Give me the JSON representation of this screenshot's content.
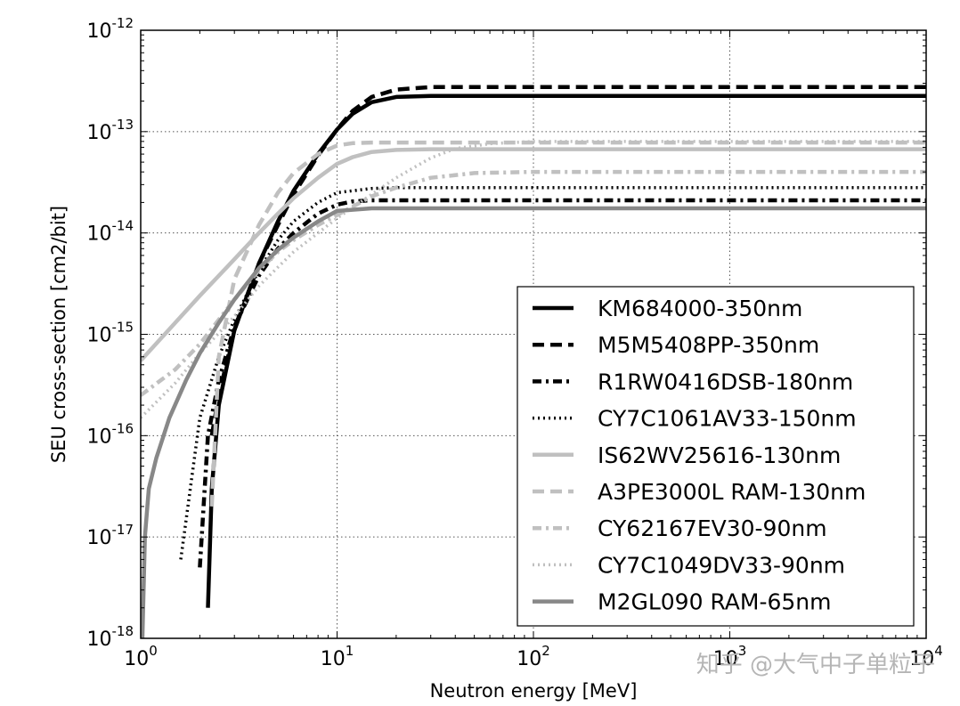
{
  "chart_data": {
    "type": "line",
    "xlabel": "Neutron energy [MeV]",
    "ylabel": "SEU cross-section [cm2/bit]",
    "x_scale": "log",
    "y_scale": "log",
    "xlim": [
      1,
      10000
    ],
    "ylim": [
      1e-18,
      1e-12
    ],
    "grid": true,
    "legend_position": "lower-right",
    "x_ticks": [
      {
        "base": "10",
        "exp": "0",
        "value": 1
      },
      {
        "base": "10",
        "exp": "1",
        "value": 10
      },
      {
        "base": "10",
        "exp": "2",
        "value": 100
      },
      {
        "base": "10",
        "exp": "3",
        "value": 1000
      },
      {
        "base": "10",
        "exp": "4",
        "value": 10000
      }
    ],
    "y_ticks": [
      {
        "base": "10",
        "exp": "-12",
        "value": 1e-12
      },
      {
        "base": "10",
        "exp": "-13",
        "value": 1e-13
      },
      {
        "base": "10",
        "exp": "-14",
        "value": 1e-14
      },
      {
        "base": "10",
        "exp": "-15",
        "value": 1e-15
      },
      {
        "base": "10",
        "exp": "-16",
        "value": 1e-16
      },
      {
        "base": "10",
        "exp": "-17",
        "value": 1e-17
      },
      {
        "base": "10",
        "exp": "-18",
        "value": 1e-18
      }
    ],
    "series": [
      {
        "name": "KM684000-350nm",
        "color": "#000000",
        "style": "solid",
        "x": [
          2.2,
          2.3,
          2.5,
          3,
          4,
          5,
          6,
          8,
          10,
          12,
          15,
          20,
          30,
          100,
          1000,
          10000
        ],
        "y": [
          2e-18,
          3e-17,
          2e-16,
          1.1e-15,
          5e-15,
          1.3e-14,
          2.6e-14,
          6e-14,
          1.05e-13,
          1.5e-13,
          1.95e-13,
          2.2e-13,
          2.25e-13,
          2.25e-13,
          2.25e-13,
          2.25e-13
        ]
      },
      {
        "name": "M5M5408PP-350nm",
        "color": "#000000",
        "style": "dashed",
        "x": [
          2.3,
          2.5,
          3,
          4,
          5,
          6,
          8,
          10,
          12,
          15,
          20,
          30,
          100,
          1000,
          10000
        ],
        "y": [
          1e-16,
          2.5e-16,
          1.1e-15,
          5e-15,
          1.2e-14,
          2.4e-14,
          5.8e-14,
          1.05e-13,
          1.6e-13,
          2.2e-13,
          2.6e-13,
          2.75e-13,
          2.75e-13,
          2.75e-13,
          2.75e-13
        ]
      },
      {
        "name": "R1RW0416DSB-180nm",
        "color": "#000000",
        "style": "dashdot",
        "x": [
          2.0,
          2.2,
          2.5,
          3,
          4,
          5,
          6,
          8,
          10,
          12,
          15,
          20,
          100,
          1000,
          10000
        ],
        "y": [
          5e-18,
          1e-16,
          3.5e-16,
          1.2e-15,
          3.8e-15,
          7e-15,
          1e-14,
          1.55e-14,
          1.9e-14,
          2.05e-14,
          2.1e-14,
          2.1e-14,
          2.1e-14,
          2.1e-14,
          2.1e-14
        ]
      },
      {
        "name": "CY7C1061AV33-150nm",
        "color": "#000000",
        "style": "dotted",
        "x": [
          1.6,
          2,
          2.5,
          3,
          4,
          5,
          6,
          8,
          10,
          15,
          20,
          100,
          1000,
          10000
        ],
        "y": [
          6e-18,
          1.5e-16,
          6e-16,
          1.4e-15,
          4.3e-15,
          8.5e-15,
          1.3e-14,
          2e-14,
          2.5e-14,
          2.75e-14,
          2.8e-14,
          2.8e-14,
          2.8e-14,
          2.8e-14
        ]
      },
      {
        "name": "IS62WV25616-130nm",
        "color": "#c0c0c0",
        "style": "solid",
        "x": [
          1.0,
          1.5,
          2,
          3,
          4,
          5,
          6,
          8,
          10,
          12,
          15,
          20,
          30,
          100,
          1000,
          10000
        ],
        "y": [
          5.5e-16,
          1.3e-15,
          2.4e-15,
          5.5e-15,
          1e-14,
          1.55e-14,
          2.2e-14,
          3.5e-14,
          4.8e-14,
          5.6e-14,
          6.3e-14,
          6.6e-14,
          6.7e-14,
          6.7e-14,
          6.7e-14,
          6.7e-14
        ]
      },
      {
        "name": "A3PE3000L RAM-130nm",
        "color": "#c0c0c0",
        "style": "dashed",
        "x": [
          2.3,
          2.5,
          3,
          4,
          5,
          6,
          8,
          10,
          12,
          15,
          20,
          100,
          1000,
          10000
        ],
        "y": [
          2e-17,
          6e-16,
          3.5e-15,
          1.2e-14,
          2.5e-14,
          3.9e-14,
          6e-14,
          7.3e-14,
          7.7e-14,
          7.8e-14,
          7.8e-14,
          7.8e-14,
          7.8e-14,
          7.8e-14
        ]
      },
      {
        "name": "CY62167EV30-90nm",
        "color": "#c0c0c0",
        "style": "dashdot",
        "x": [
          1.0,
          1.5,
          2,
          3,
          4,
          5,
          6,
          8,
          10,
          15,
          20,
          30,
          50,
          100,
          1000,
          10000
        ],
        "y": [
          2.5e-16,
          4.5e-16,
          8e-16,
          2.2e-15,
          4.3e-15,
          6.5e-15,
          8.5e-15,
          1.2e-14,
          1.5e-14,
          2.3e-14,
          2.8e-14,
          3.5e-14,
          3.9e-14,
          4e-14,
          4e-14,
          4e-14
        ]
      },
      {
        "name": "CY7C1049DV33-90nm",
        "color": "#c0c0c0",
        "style": "dotted",
        "x": [
          1.0,
          1.5,
          2,
          3,
          4,
          5,
          6,
          8,
          10,
          15,
          20,
          30,
          40,
          60,
          100,
          1000,
          10000
        ],
        "y": [
          1.5e-16,
          3.3e-16,
          6.5e-16,
          1.5e-15,
          3e-15,
          4.6e-15,
          6.5e-15,
          1e-14,
          1.4e-14,
          2.4e-14,
          3.5e-14,
          5.5e-14,
          6.8e-14,
          7.6e-14,
          8e-14,
          8e-14,
          8e-14
        ]
      },
      {
        "name": "M2GL090 RAM-65nm",
        "color": "#888888",
        "style": "solid",
        "x": [
          1.02,
          1.05,
          1.1,
          1.2,
          1.4,
          1.7,
          2,
          2.5,
          3,
          4,
          5,
          6,
          8,
          10,
          15,
          20,
          100,
          1000,
          10000
        ],
        "y": [
          1e-18,
          1e-17,
          3e-17,
          6e-17,
          1.5e-16,
          3.5e-16,
          6.5e-16,
          1.3e-15,
          2.2e-15,
          4.5e-15,
          6.8e-15,
          9e-15,
          1.3e-14,
          1.65e-14,
          1.75e-14,
          1.75e-14,
          1.75e-14,
          1.75e-14,
          1.75e-14
        ]
      }
    ]
  },
  "watermark": "知乎 @大气中子单粒子"
}
